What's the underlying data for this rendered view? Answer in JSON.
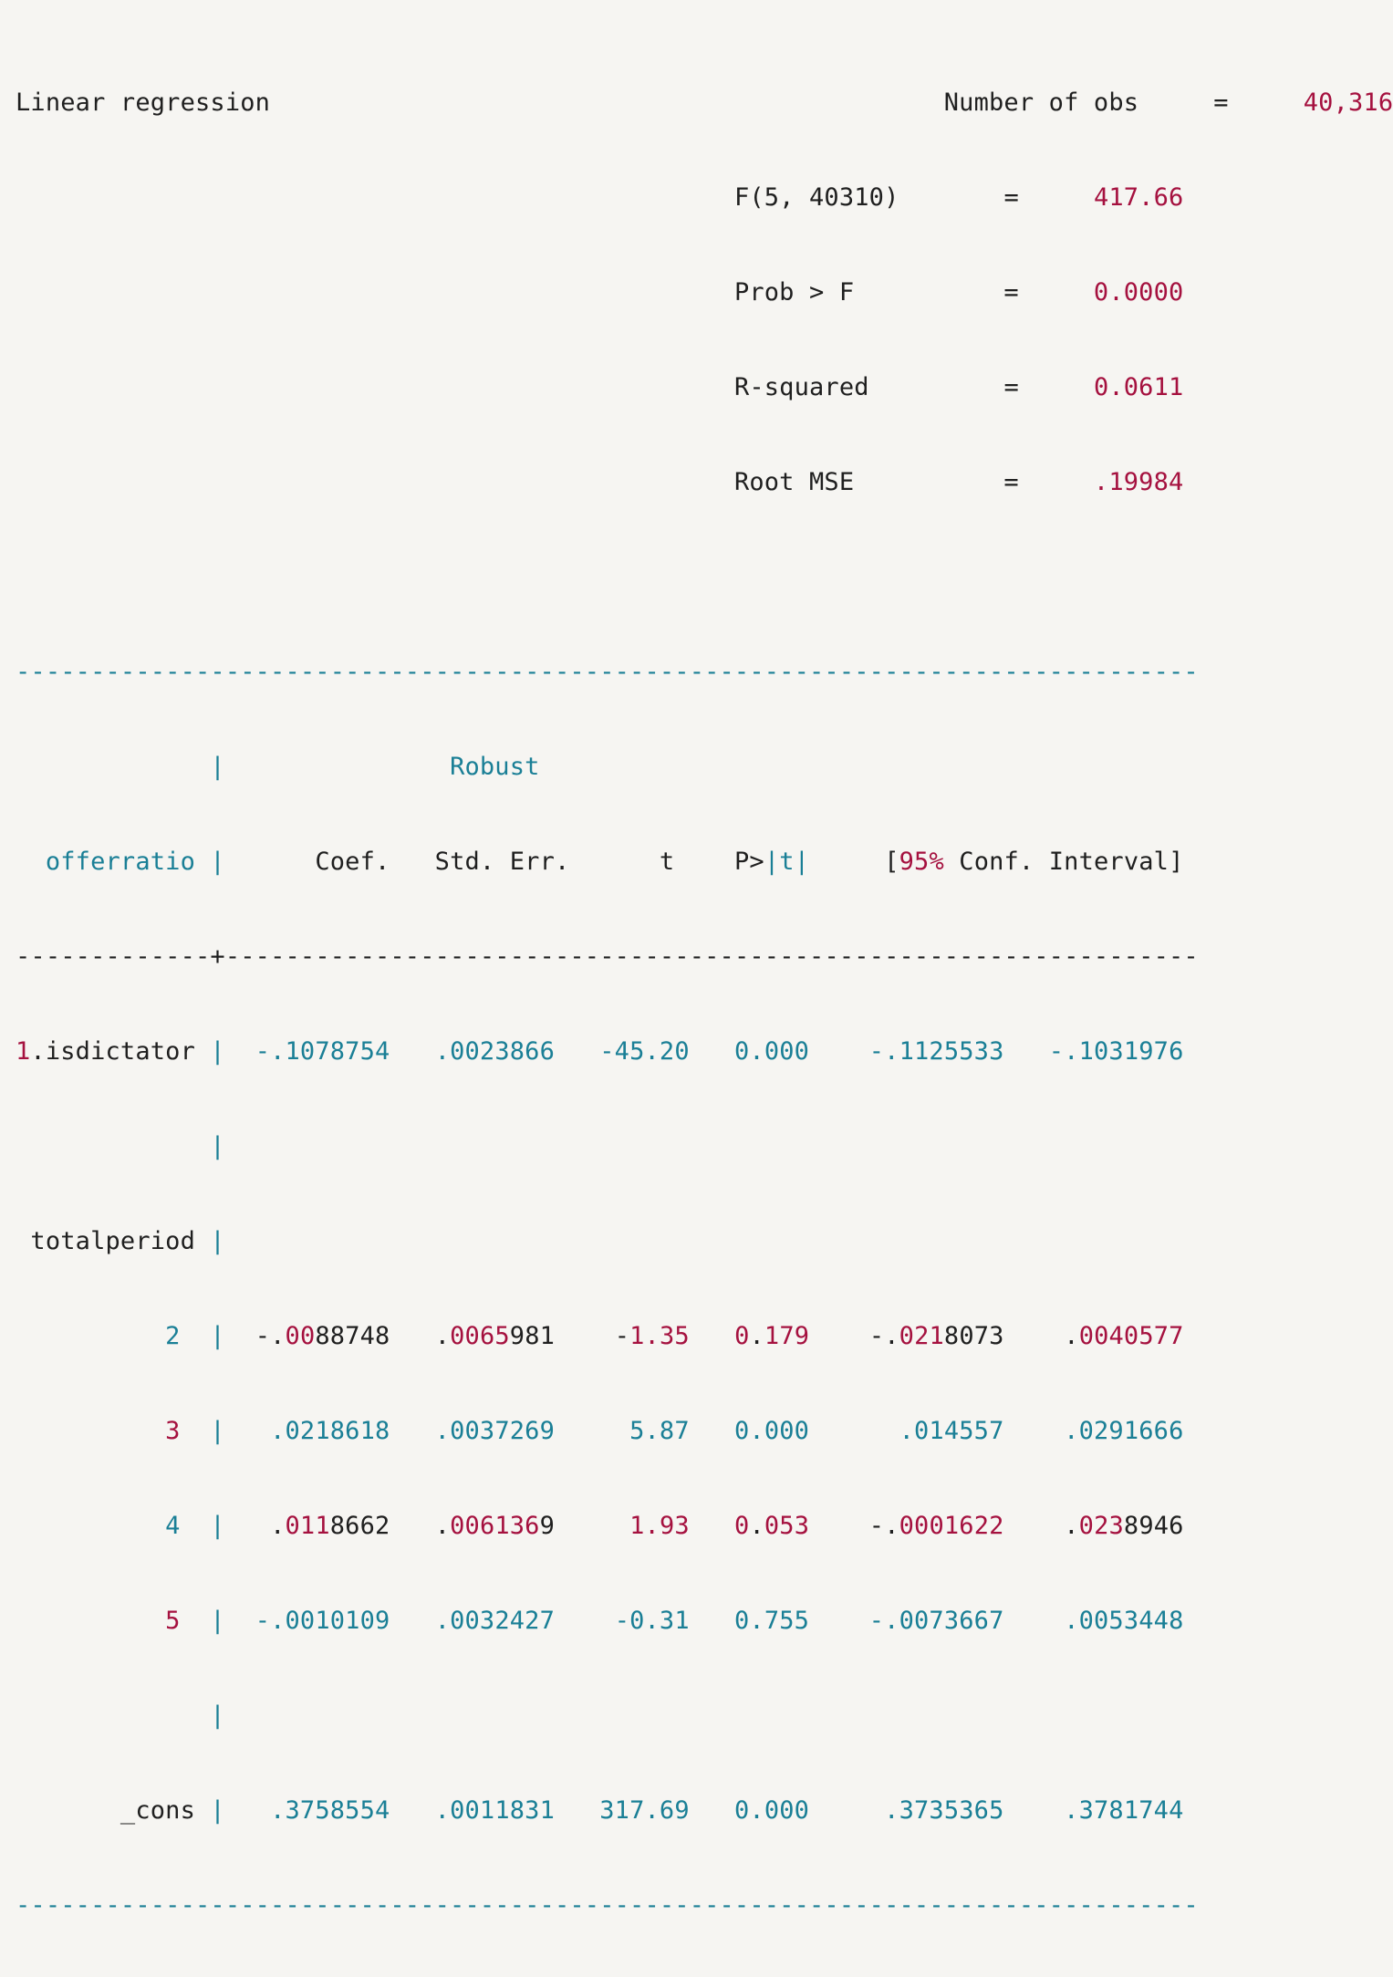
{
  "colors": {
    "text": "#1f1f1f",
    "teal": "#1a7f96",
    "red": "#a5113f",
    "background": "#f6f5f2"
  },
  "output": {
    "title": "Linear regression",
    "stats": [
      {
        "label": "Number of obs",
        "eq": "=",
        "value": "40,316"
      },
      {
        "label": "F(5, 40310)",
        "eq": "=",
        "value": "417.66"
      },
      {
        "label": "Prob > F",
        "eq": "=",
        "value": "0.0000"
      },
      {
        "label": "R-squared",
        "eq": "=",
        "value": "0.0611"
      },
      {
        "label": "Root MSE",
        "eq": "=",
        "value": ".19984"
      }
    ],
    "rule_top": "-------------------------------------------------------------------------------",
    "rule_mid_left": "-------------",
    "rule_mid_plus": "+",
    "rule_mid_right": "-----------------------------------------------------------------",
    "rule_bottom": "-------------------------------------------------------------------------------",
    "bar": "|",
    "header": {
      "robust": "Robust",
      "depvar": "offerratio",
      "coef": "Coef.",
      "se": "Std. Err.",
      "t": "t",
      "p_prefix": "P>",
      "p_abs": "|t|",
      "ci_open": "[",
      "ci_level": "95%",
      "ci_text": " Conf. Interval]"
    },
    "rows": [
      {
        "pre": "1",
        "label": ".isdictator",
        "coef": "-.1078754",
        "se": ".0023866",
        "t": "-45.20",
        "p": "0.000",
        "lo": "-.1125533",
        "hi": "-.1031976"
      },
      {
        "group": "totalperiod"
      },
      {
        "label": "2",
        "coef": "-.0088748",
        "se": ".0065981",
        "t": "-1.35",
        "p": "0.179",
        "lo": "-.0218073",
        "hi": ".0040577"
      },
      {
        "label": "3",
        "coef": ".0218618",
        "se": ".0037269",
        "t": "5.87",
        "p": "0.000",
        "lo": ".014557",
        "hi": ".0291666"
      },
      {
        "label": "4",
        "coef": ".0118662",
        "se": ".0061369",
        "t": "1.93",
        "p": "0.053",
        "lo": "-.0001622",
        "hi": ".0238946"
      },
      {
        "label": "5",
        "coef": "-.0010109",
        "se": ".0032427",
        "t": "-0.31",
        "p": "0.755",
        "lo": "-.0073667",
        "hi": ".0053448"
      },
      {
        "label": "_cons",
        "coef": ".3758554",
        "se": ".0011831",
        "t": "317.69",
        "p": "0.000",
        "lo": ".3735365",
        "hi": ".3781744"
      }
    ]
  }
}
